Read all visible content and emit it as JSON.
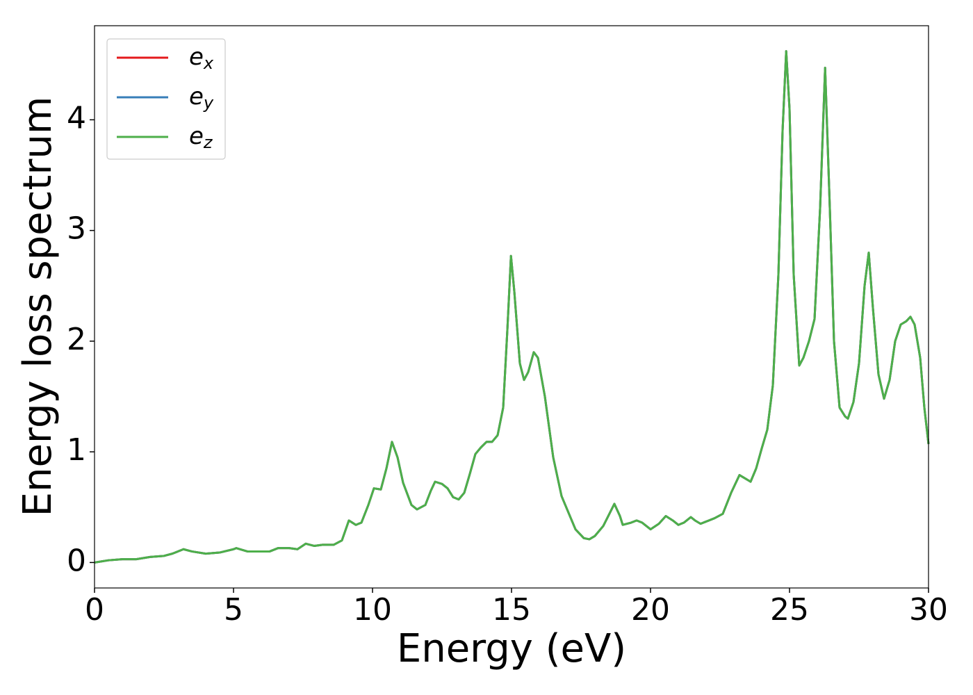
{
  "chart_data": {
    "type": "line",
    "xlabel": "Energy (eV)",
    "ylabel": "Energy loss spectrum",
    "x": [
      0,
      0.5,
      1.0,
      1.5,
      2.0,
      2.5,
      2.8,
      3.2,
      3.5,
      4.0,
      4.5,
      5.0,
      5.1,
      5.5,
      6.0,
      6.3,
      6.6,
      7.0,
      7.3,
      7.6,
      7.9,
      8.2,
      8.6,
      8.9,
      9.15,
      9.4,
      9.6,
      9.85,
      10.05,
      10.3,
      10.5,
      10.7,
      10.9,
      11.1,
      11.4,
      11.6,
      11.9,
      12.1,
      12.25,
      12.5,
      12.7,
      12.9,
      13.1,
      13.3,
      13.5,
      13.7,
      13.9,
      14.1,
      14.3,
      14.5,
      14.7,
      14.85,
      14.98,
      15.1,
      15.3,
      15.45,
      15.6,
      15.8,
      15.95,
      16.2,
      16.5,
      16.8,
      17.0,
      17.3,
      17.6,
      17.8,
      18.0,
      18.3,
      18.5,
      18.7,
      18.9,
      19.0,
      19.3,
      19.5,
      19.7,
      20.0,
      20.3,
      20.55,
      20.8,
      21.0,
      21.2,
      21.45,
      21.6,
      21.8,
      22.0,
      22.3,
      22.6,
      22.9,
      23.2,
      23.4,
      23.6,
      23.8,
      24.0,
      24.2,
      24.4,
      24.6,
      24.75,
      24.88,
      25.0,
      25.15,
      25.35,
      25.5,
      25.7,
      25.9,
      26.1,
      26.28,
      26.45,
      26.6,
      26.8,
      27.0,
      27.1,
      27.3,
      27.5,
      27.7,
      27.85,
      28.0,
      28.2,
      28.4,
      28.6,
      28.8,
      29.0,
      29.2,
      29.35,
      29.5,
      29.7,
      29.85,
      30.0
    ],
    "series": [
      {
        "name": "e_x",
        "color": "#e41a1c",
        "values": [
          0.0,
          0.02,
          0.03,
          0.03,
          0.05,
          0.06,
          0.08,
          0.12,
          0.1,
          0.08,
          0.09,
          0.12,
          0.13,
          0.1,
          0.1,
          0.1,
          0.13,
          0.13,
          0.12,
          0.17,
          0.15,
          0.16,
          0.16,
          0.2,
          0.38,
          0.34,
          0.36,
          0.52,
          0.67,
          0.66,
          0.85,
          1.09,
          0.95,
          0.72,
          0.52,
          0.48,
          0.52,
          0.65,
          0.73,
          0.71,
          0.67,
          0.59,
          0.57,
          0.63,
          0.8,
          0.98,
          1.04,
          1.09,
          1.09,
          1.15,
          1.4,
          2.1,
          2.77,
          2.45,
          1.8,
          1.65,
          1.72,
          1.9,
          1.85,
          1.5,
          0.95,
          0.6,
          0.48,
          0.3,
          0.22,
          0.21,
          0.24,
          0.33,
          0.43,
          0.53,
          0.42,
          0.34,
          0.36,
          0.38,
          0.36,
          0.3,
          0.35,
          0.42,
          0.38,
          0.34,
          0.36,
          0.41,
          0.38,
          0.35,
          0.37,
          0.4,
          0.44,
          0.63,
          0.79,
          0.76,
          0.73,
          0.85,
          1.03,
          1.2,
          1.6,
          2.6,
          3.9,
          4.62,
          4.1,
          2.6,
          1.78,
          1.85,
          2.0,
          2.2,
          3.2,
          4.47,
          3.2,
          2.0,
          1.4,
          1.32,
          1.3,
          1.45,
          1.8,
          2.5,
          2.8,
          2.3,
          1.7,
          1.48,
          1.65,
          2.0,
          2.15,
          2.18,
          2.22,
          2.15,
          1.85,
          1.4,
          1.07
        ]
      },
      {
        "name": "e_y",
        "color": "#377eb8",
        "values": [
          0.0,
          0.02,
          0.03,
          0.03,
          0.05,
          0.06,
          0.08,
          0.12,
          0.1,
          0.08,
          0.09,
          0.12,
          0.13,
          0.1,
          0.1,
          0.1,
          0.13,
          0.13,
          0.12,
          0.17,
          0.15,
          0.16,
          0.16,
          0.2,
          0.38,
          0.34,
          0.36,
          0.52,
          0.67,
          0.66,
          0.85,
          1.09,
          0.95,
          0.72,
          0.52,
          0.48,
          0.52,
          0.65,
          0.73,
          0.71,
          0.67,
          0.59,
          0.57,
          0.63,
          0.8,
          0.98,
          1.04,
          1.09,
          1.09,
          1.15,
          1.4,
          2.1,
          2.77,
          2.45,
          1.8,
          1.65,
          1.72,
          1.9,
          1.85,
          1.5,
          0.95,
          0.6,
          0.48,
          0.3,
          0.22,
          0.21,
          0.24,
          0.33,
          0.43,
          0.53,
          0.42,
          0.34,
          0.36,
          0.38,
          0.36,
          0.3,
          0.35,
          0.42,
          0.38,
          0.34,
          0.36,
          0.41,
          0.38,
          0.35,
          0.37,
          0.4,
          0.44,
          0.63,
          0.79,
          0.76,
          0.73,
          0.85,
          1.03,
          1.2,
          1.6,
          2.6,
          3.9,
          4.62,
          4.1,
          2.6,
          1.78,
          1.85,
          2.0,
          2.2,
          3.2,
          4.47,
          3.2,
          2.0,
          1.4,
          1.32,
          1.3,
          1.45,
          1.8,
          2.5,
          2.8,
          2.3,
          1.7,
          1.48,
          1.65,
          2.0,
          2.15,
          2.18,
          2.22,
          2.15,
          1.85,
          1.4,
          1.07
        ]
      },
      {
        "name": "e_z",
        "color": "#4daf4a",
        "values": [
          0.0,
          0.02,
          0.03,
          0.03,
          0.05,
          0.06,
          0.08,
          0.12,
          0.1,
          0.08,
          0.09,
          0.12,
          0.13,
          0.1,
          0.1,
          0.1,
          0.13,
          0.13,
          0.12,
          0.17,
          0.15,
          0.16,
          0.16,
          0.2,
          0.38,
          0.34,
          0.36,
          0.52,
          0.67,
          0.66,
          0.85,
          1.09,
          0.95,
          0.72,
          0.52,
          0.48,
          0.52,
          0.65,
          0.73,
          0.71,
          0.67,
          0.59,
          0.57,
          0.63,
          0.8,
          0.98,
          1.04,
          1.09,
          1.09,
          1.15,
          1.4,
          2.1,
          2.77,
          2.45,
          1.8,
          1.65,
          1.72,
          1.9,
          1.85,
          1.5,
          0.95,
          0.6,
          0.48,
          0.3,
          0.22,
          0.21,
          0.24,
          0.33,
          0.43,
          0.53,
          0.42,
          0.34,
          0.36,
          0.38,
          0.36,
          0.3,
          0.35,
          0.42,
          0.38,
          0.34,
          0.36,
          0.41,
          0.38,
          0.35,
          0.37,
          0.4,
          0.44,
          0.63,
          0.79,
          0.76,
          0.73,
          0.85,
          1.03,
          1.2,
          1.6,
          2.6,
          3.9,
          4.62,
          4.1,
          2.6,
          1.78,
          1.85,
          2.0,
          2.2,
          3.2,
          4.47,
          3.2,
          2.0,
          1.4,
          1.32,
          1.3,
          1.45,
          1.8,
          2.5,
          2.8,
          2.3,
          1.7,
          1.48,
          1.65,
          2.0,
          2.15,
          2.18,
          2.22,
          2.15,
          1.85,
          1.4,
          1.07
        ]
      }
    ],
    "xlim": [
      0,
      30
    ],
    "xticks": [
      0,
      5,
      10,
      15,
      20,
      25,
      30
    ],
    "ylim": [
      -0.23,
      4.85
    ],
    "yticks": [
      0,
      1,
      2,
      3,
      4
    ],
    "legend": "upper left"
  }
}
